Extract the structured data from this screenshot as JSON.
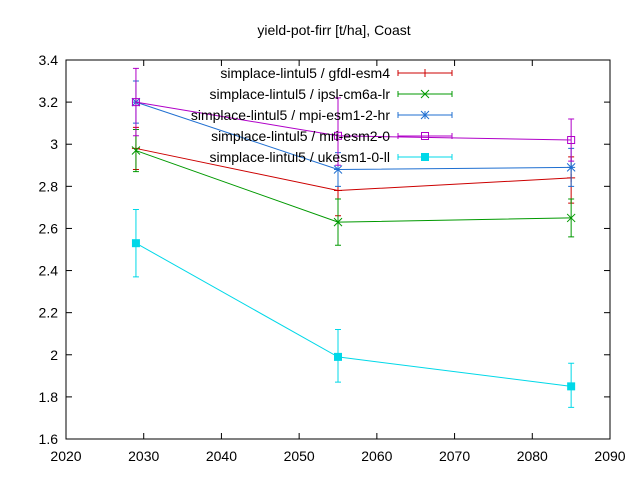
{
  "chart_data": {
    "type": "line",
    "title": "yield-pot-firr [t/ha], Coast",
    "xlabel": "",
    "ylabel": "",
    "xlim": [
      2020,
      2090
    ],
    "ylim": [
      1.6,
      3.4
    ],
    "xticks": [
      2020,
      2030,
      2040,
      2050,
      2060,
      2070,
      2080,
      2090
    ],
    "yticks": [
      1.6,
      1.8,
      2.0,
      2.2,
      2.4,
      2.6,
      2.8,
      3.0,
      3.2,
      3.4
    ],
    "ytick_labels": [
      "1.6",
      "1.8",
      "2",
      "2.2",
      "2.4",
      "2.6",
      "2.8",
      "3",
      "3.2",
      "3.4"
    ],
    "grid": false,
    "legend_position": "top-right",
    "x": [
      2029,
      2055,
      2085
    ],
    "series": [
      {
        "name": "simplace-lintul5 / gfdl-esm4",
        "color": "#cc0000",
        "marker": "plus",
        "values": [
          2.98,
          2.78,
          2.84
        ],
        "err_low": [
          2.88,
          2.66,
          2.72
        ],
        "err_high": [
          3.08,
          2.88,
          2.94
        ]
      },
      {
        "name": "simplace-lintul5 / ipsl-cm6a-lr",
        "color": "#009900",
        "marker": "cross",
        "values": [
          2.97,
          2.63,
          2.65
        ],
        "err_low": [
          2.87,
          2.52,
          2.56
        ],
        "err_high": [
          3.07,
          2.74,
          2.74
        ]
      },
      {
        "name": "simplace-lintul5 / mpi-esm1-2-hr",
        "color": "#1f6fd1",
        "marker": "star",
        "values": [
          3.2,
          2.88,
          2.89
        ],
        "err_low": [
          3.1,
          2.8,
          2.8
        ],
        "err_high": [
          3.3,
          2.96,
          2.98
        ]
      },
      {
        "name": "simplace-lintul5 / mri-esm2-0",
        "color": "#b000c8",
        "marker": "square-open",
        "values": [
          3.2,
          3.04,
          3.02
        ],
        "err_low": [
          3.04,
          2.9,
          2.92
        ],
        "err_high": [
          3.36,
          3.22,
          3.12
        ]
      },
      {
        "name": "simplace-lintul5 / ukesm1-0-ll",
        "color": "#00d8e8",
        "marker": "square-filled",
        "values": [
          2.53,
          1.99,
          1.85
        ],
        "err_low": [
          2.37,
          1.87,
          1.75
        ],
        "err_high": [
          2.69,
          2.12,
          1.96
        ]
      }
    ]
  }
}
